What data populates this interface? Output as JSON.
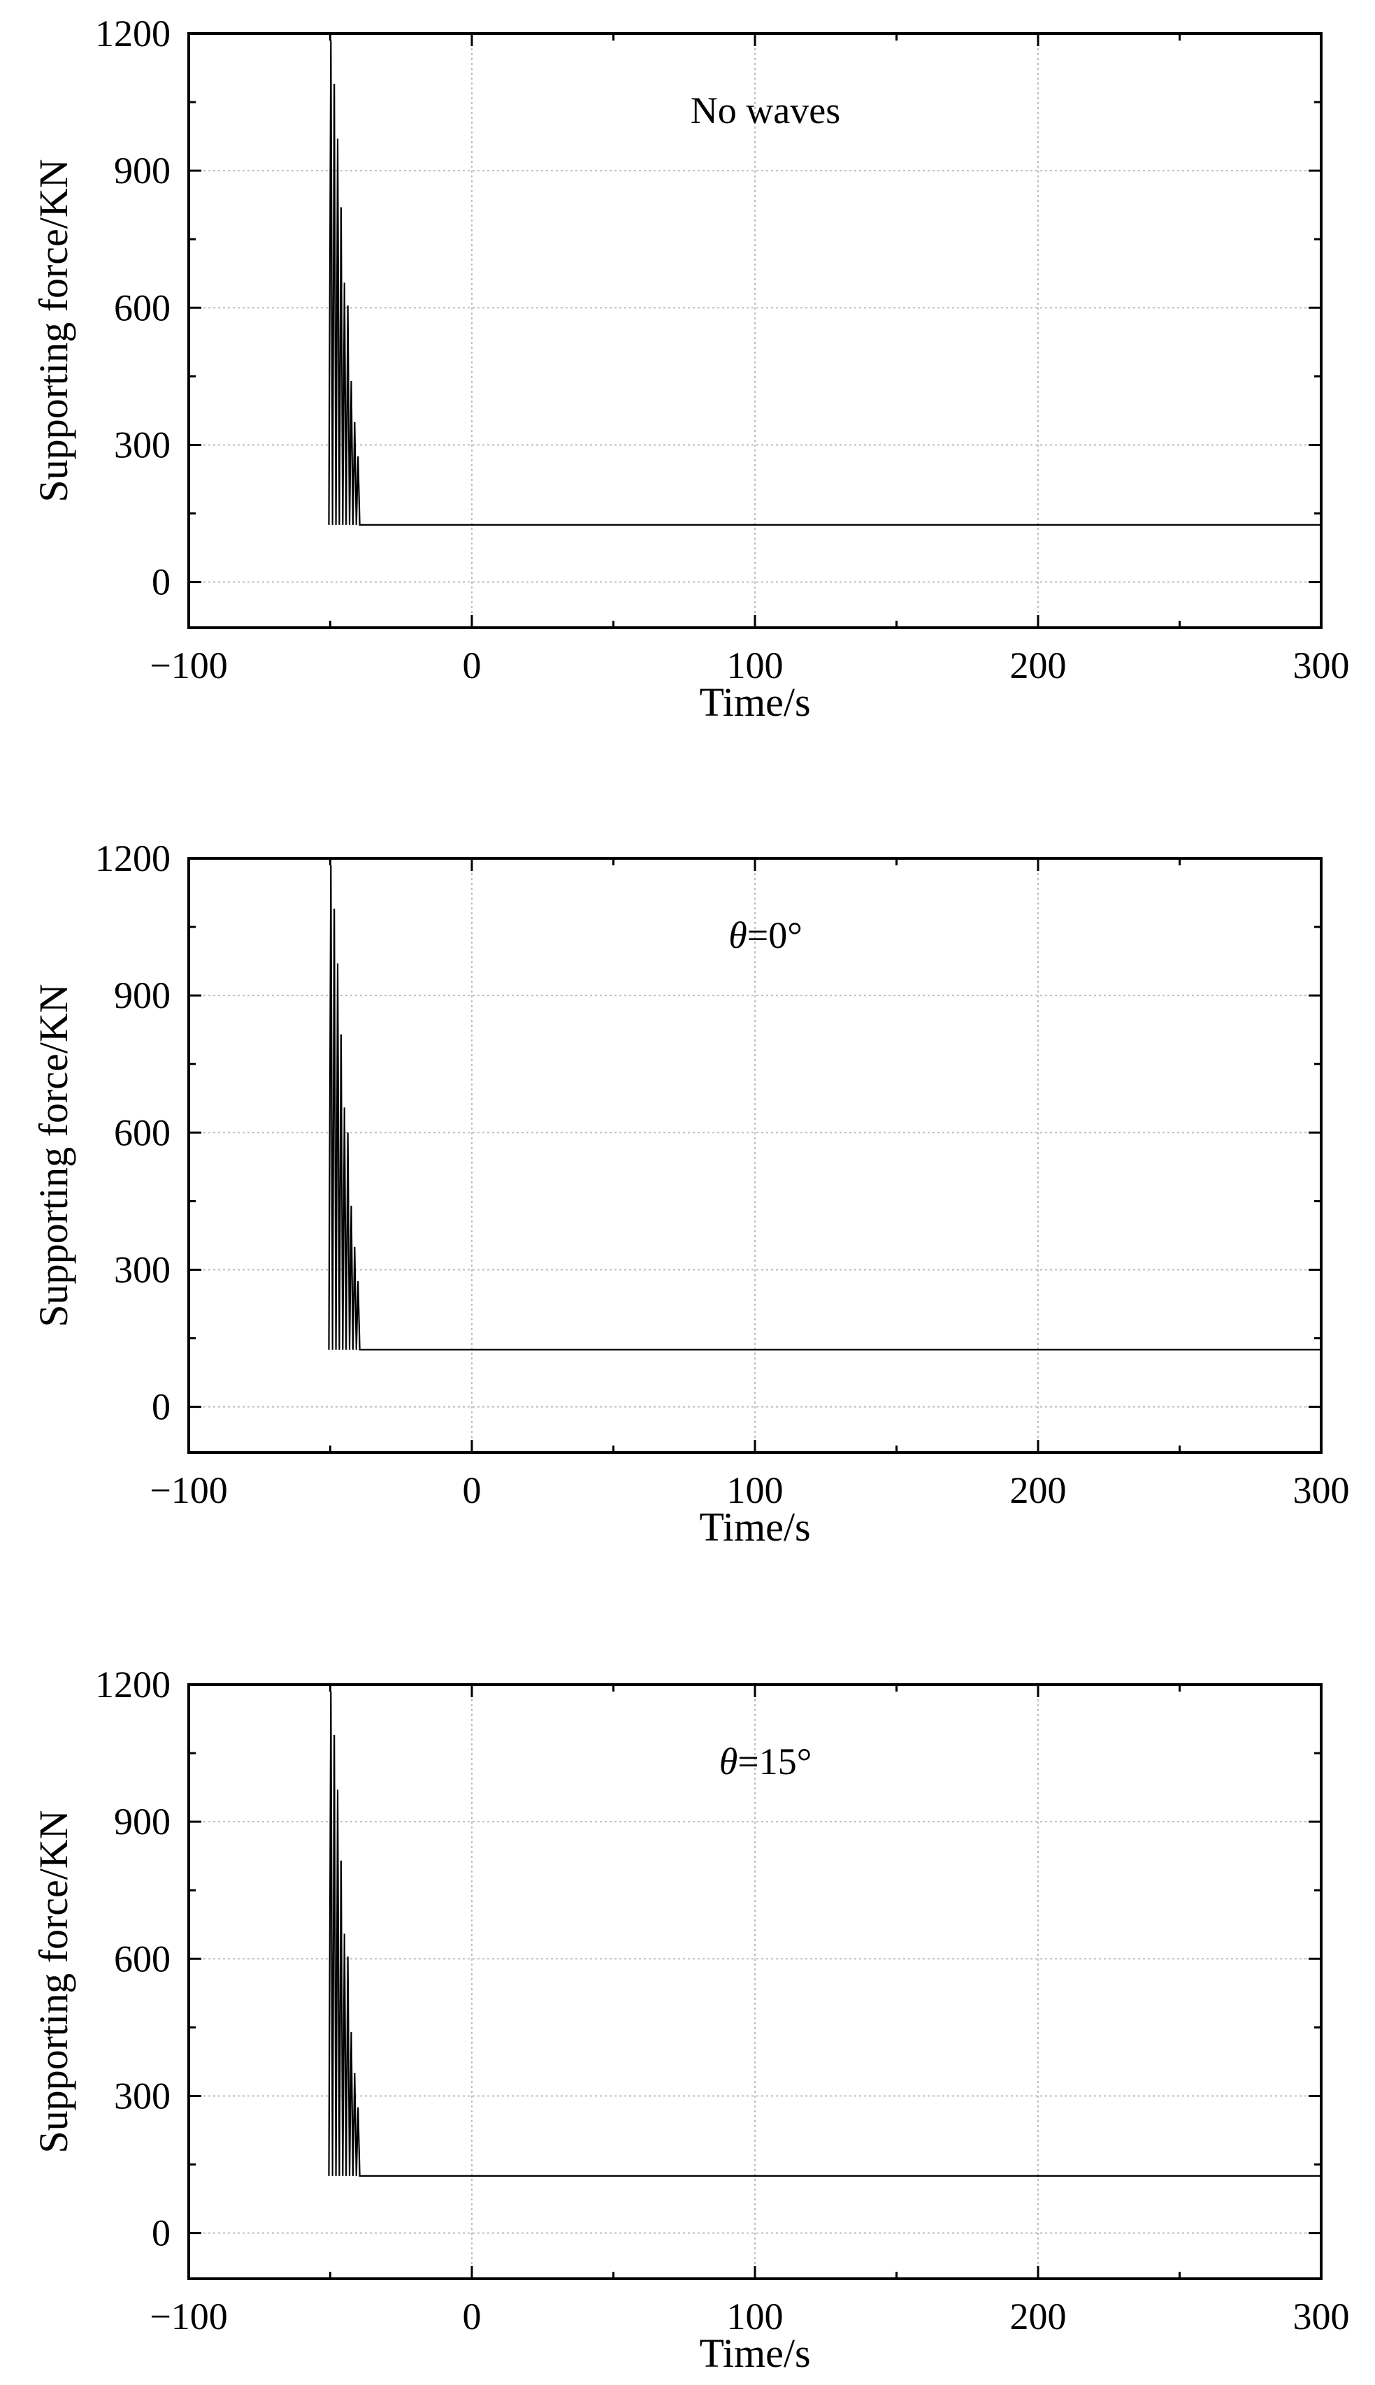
{
  "chart_data": [
    {
      "type": "line",
      "annotation": "No waves",
      "annotation_theta": "",
      "annotation_suffix": "",
      "xlabel": "Time/s",
      "ylabel": "Supporting force/KN",
      "xlim": [
        -100,
        300
      ],
      "ylim": [
        -100,
        1200
      ],
      "xticks": [
        -100,
        0,
        100,
        200,
        300
      ],
      "xtick_labels": [
        "−100",
        "0",
        "100",
        "200",
        "300"
      ],
      "yticks": [
        0,
        300,
        600,
        900,
        1200
      ],
      "ytick_labels": [
        "0",
        "300",
        "600",
        "900",
        "1200"
      ],
      "grid": true,
      "series": [
        {
          "x": [
            -50.5,
            -49.8,
            -49.2,
            -48.6,
            -48.0,
            -47.4,
            -46.8,
            -46.2,
            -45.6,
            -45.0,
            -44.4,
            -43.8,
            -43.2,
            -42.6,
            -42.0,
            -41.4,
            -40.8,
            -40.2,
            -39.6,
            300
          ],
          "y": [
            125,
            1185,
            125,
            1090,
            125,
            970,
            125,
            820,
            125,
            655,
            125,
            605,
            125,
            440,
            125,
            350,
            125,
            275,
            125,
            125
          ]
        }
      ]
    },
    {
      "type": "line",
      "annotation": "",
      "annotation_theta": "θ",
      "annotation_suffix": "=0°",
      "xlabel": "Time/s",
      "ylabel": "Supporting force/KN",
      "xlim": [
        -100,
        300
      ],
      "ylim": [
        -100,
        1200
      ],
      "xticks": [
        -100,
        0,
        100,
        200,
        300
      ],
      "xtick_labels": [
        "−100",
        "0",
        "100",
        "200",
        "300"
      ],
      "yticks": [
        0,
        300,
        600,
        900,
        1200
      ],
      "ytick_labels": [
        "0",
        "300",
        "600",
        "900",
        "1200"
      ],
      "grid": true,
      "series": [
        {
          "x": [
            -50.5,
            -49.8,
            -49.2,
            -48.6,
            -48.0,
            -47.4,
            -46.8,
            -46.2,
            -45.6,
            -45.0,
            -44.4,
            -43.8,
            -43.2,
            -42.6,
            -42.0,
            -41.4,
            -40.8,
            -40.2,
            -39.6,
            300
          ],
          "y": [
            125,
            1185,
            125,
            1090,
            125,
            970,
            125,
            815,
            125,
            655,
            125,
            600,
            125,
            440,
            125,
            350,
            125,
            275,
            125,
            125
          ]
        }
      ]
    },
    {
      "type": "line",
      "annotation": "",
      "annotation_theta": "θ",
      "annotation_suffix": "=15°",
      "xlabel": "Time/s",
      "ylabel": "Supporting force/KN",
      "xlim": [
        -100,
        300
      ],
      "ylim": [
        -100,
        1200
      ],
      "xticks": [
        -100,
        0,
        100,
        200,
        300
      ],
      "xtick_labels": [
        "−100",
        "0",
        "100",
        "200",
        "300"
      ],
      "yticks": [
        0,
        300,
        600,
        900,
        1200
      ],
      "ytick_labels": [
        "0",
        "300",
        "600",
        "900",
        "1200"
      ],
      "grid": true,
      "series": [
        {
          "x": [
            -50.5,
            -49.8,
            -49.2,
            -48.6,
            -48.0,
            -47.4,
            -46.8,
            -46.2,
            -45.6,
            -45.0,
            -44.4,
            -43.8,
            -43.2,
            -42.6,
            -42.0,
            -41.4,
            -40.8,
            -40.2,
            -39.6,
            300
          ],
          "y": [
            125,
            1185,
            125,
            1090,
            125,
            970,
            125,
            815,
            125,
            655,
            125,
            605,
            125,
            440,
            125,
            350,
            125,
            275,
            125,
            125
          ]
        }
      ]
    }
  ]
}
